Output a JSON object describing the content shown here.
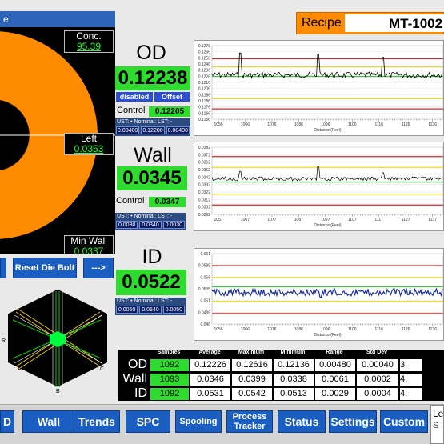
{
  "recipe": {
    "label": "Recipe",
    "value": "MT-1002"
  },
  "left_panel": {
    "title": "e",
    "conc_label": "Conc.",
    "conc_value": "95.39",
    "left_label": "Left",
    "left_value": "0.0353",
    "minwall_label": "Min Wall",
    "minwall_value": "0.0337"
  },
  "die_panel": {
    "reset_label": "Reset Die Bolt",
    "next_label": "--->",
    "labels": {
      "a": "A",
      "b": "B",
      "c": "C",
      "r": "R"
    }
  },
  "od": {
    "name": "OD",
    "value": "0.12238",
    "disabled_label": "disabled",
    "offset_label": "Offset",
    "control_label": "Control",
    "control_value": "0.12205",
    "ust_header": "UST: •  Nominal:  LST: -",
    "ust": "0.00400",
    "nominal": "0.12200",
    "lst": "0.00400",
    "chart_y_ticks": [
      "0.1276",
      "0.1266",
      "0.1256",
      "0.1246",
      "0.1236",
      "0.1226",
      "0.1216",
      "0.1206",
      "0.1196",
      "0.1186",
      "0.1176",
      "0.1166",
      "0.1156"
    ],
    "chart_x_ticks": [
      "1056",
      "1066",
      "1076",
      "1086",
      "1096",
      "1106",
      "1116",
      "1126",
      "1136"
    ],
    "xlabel": "Distance (Feet)"
  },
  "wall": {
    "name": "Wall",
    "value": "0.0345",
    "control_label": "Control",
    "control_value": "0.0347",
    "ust_header": "UST: •  Nominal:  LST: -",
    "ust": "0.0030",
    "nominal": "0.0340",
    "lst": "0.0030",
    "chart_y_ticks": [
      "0.0382",
      "0.0372",
      "0.0362",
      "0.0352",
      "0.0342",
      "0.0332",
      "0.0322",
      "0.0312",
      "0.0302",
      "0.0292"
    ],
    "chart_x_ticks": [
      "1057",
      "1067",
      "1077",
      "1087",
      "1097",
      "1107",
      "1117",
      "1127",
      "1137"
    ],
    "xlabel": "Distance (Feet)"
  },
  "id": {
    "name": "ID",
    "value": "0.0522",
    "ust_header": "UST: •  Nominal:  LST: -",
    "ust": "0.0050",
    "nominal": "0.0540",
    "lst": "0.0050",
    "chart_y_ticks": [
      "0.061",
      "0.0585",
      "0.056",
      "0.0535",
      "0.051",
      "0.0485",
      "0.046"
    ],
    "chart_x_ticks": [
      "1056",
      "1066",
      "1076",
      "1086",
      "1096",
      "1106",
      "1116",
      "1126",
      "1136"
    ],
    "xlabel": "Distance (Feet)"
  },
  "stats": {
    "headers": [
      "Samples",
      "Average",
      "Maximum",
      "Minimum",
      "Range",
      "Std Dev"
    ],
    "rows": [
      {
        "label": "OD",
        "samples": "1092",
        "average": "0.12226",
        "maximum": "0.12616",
        "minimum": "0.12136",
        "range": "0.00480",
        "stddev": "0.00040",
        "extra": "3."
      },
      {
        "label": "Wall",
        "samples": "1093",
        "average": "0.0346",
        "maximum": "0.0399",
        "minimum": "0.0338",
        "range": "0.0061",
        "stddev": "0.0002",
        "extra": "4."
      },
      {
        "label": "ID",
        "samples": "1092",
        "average": "0.0531",
        "maximum": "0.0542",
        "minimum": "0.0513",
        "range": "0.0029",
        "stddev": "0.0004",
        "extra": "4."
      }
    ]
  },
  "bottom_nav": {
    "items": [
      "D",
      "Wall",
      "Trends",
      "SPC",
      "Spooling",
      "Process Tracker",
      "Status",
      "Settings",
      "Custom"
    ],
    "le_label": "Le",
    "s_label": "S"
  },
  "colors": {
    "accent_orange": "#ff8c00",
    "green": "#2edb2e",
    "blue": "#1a5ec2"
  }
}
